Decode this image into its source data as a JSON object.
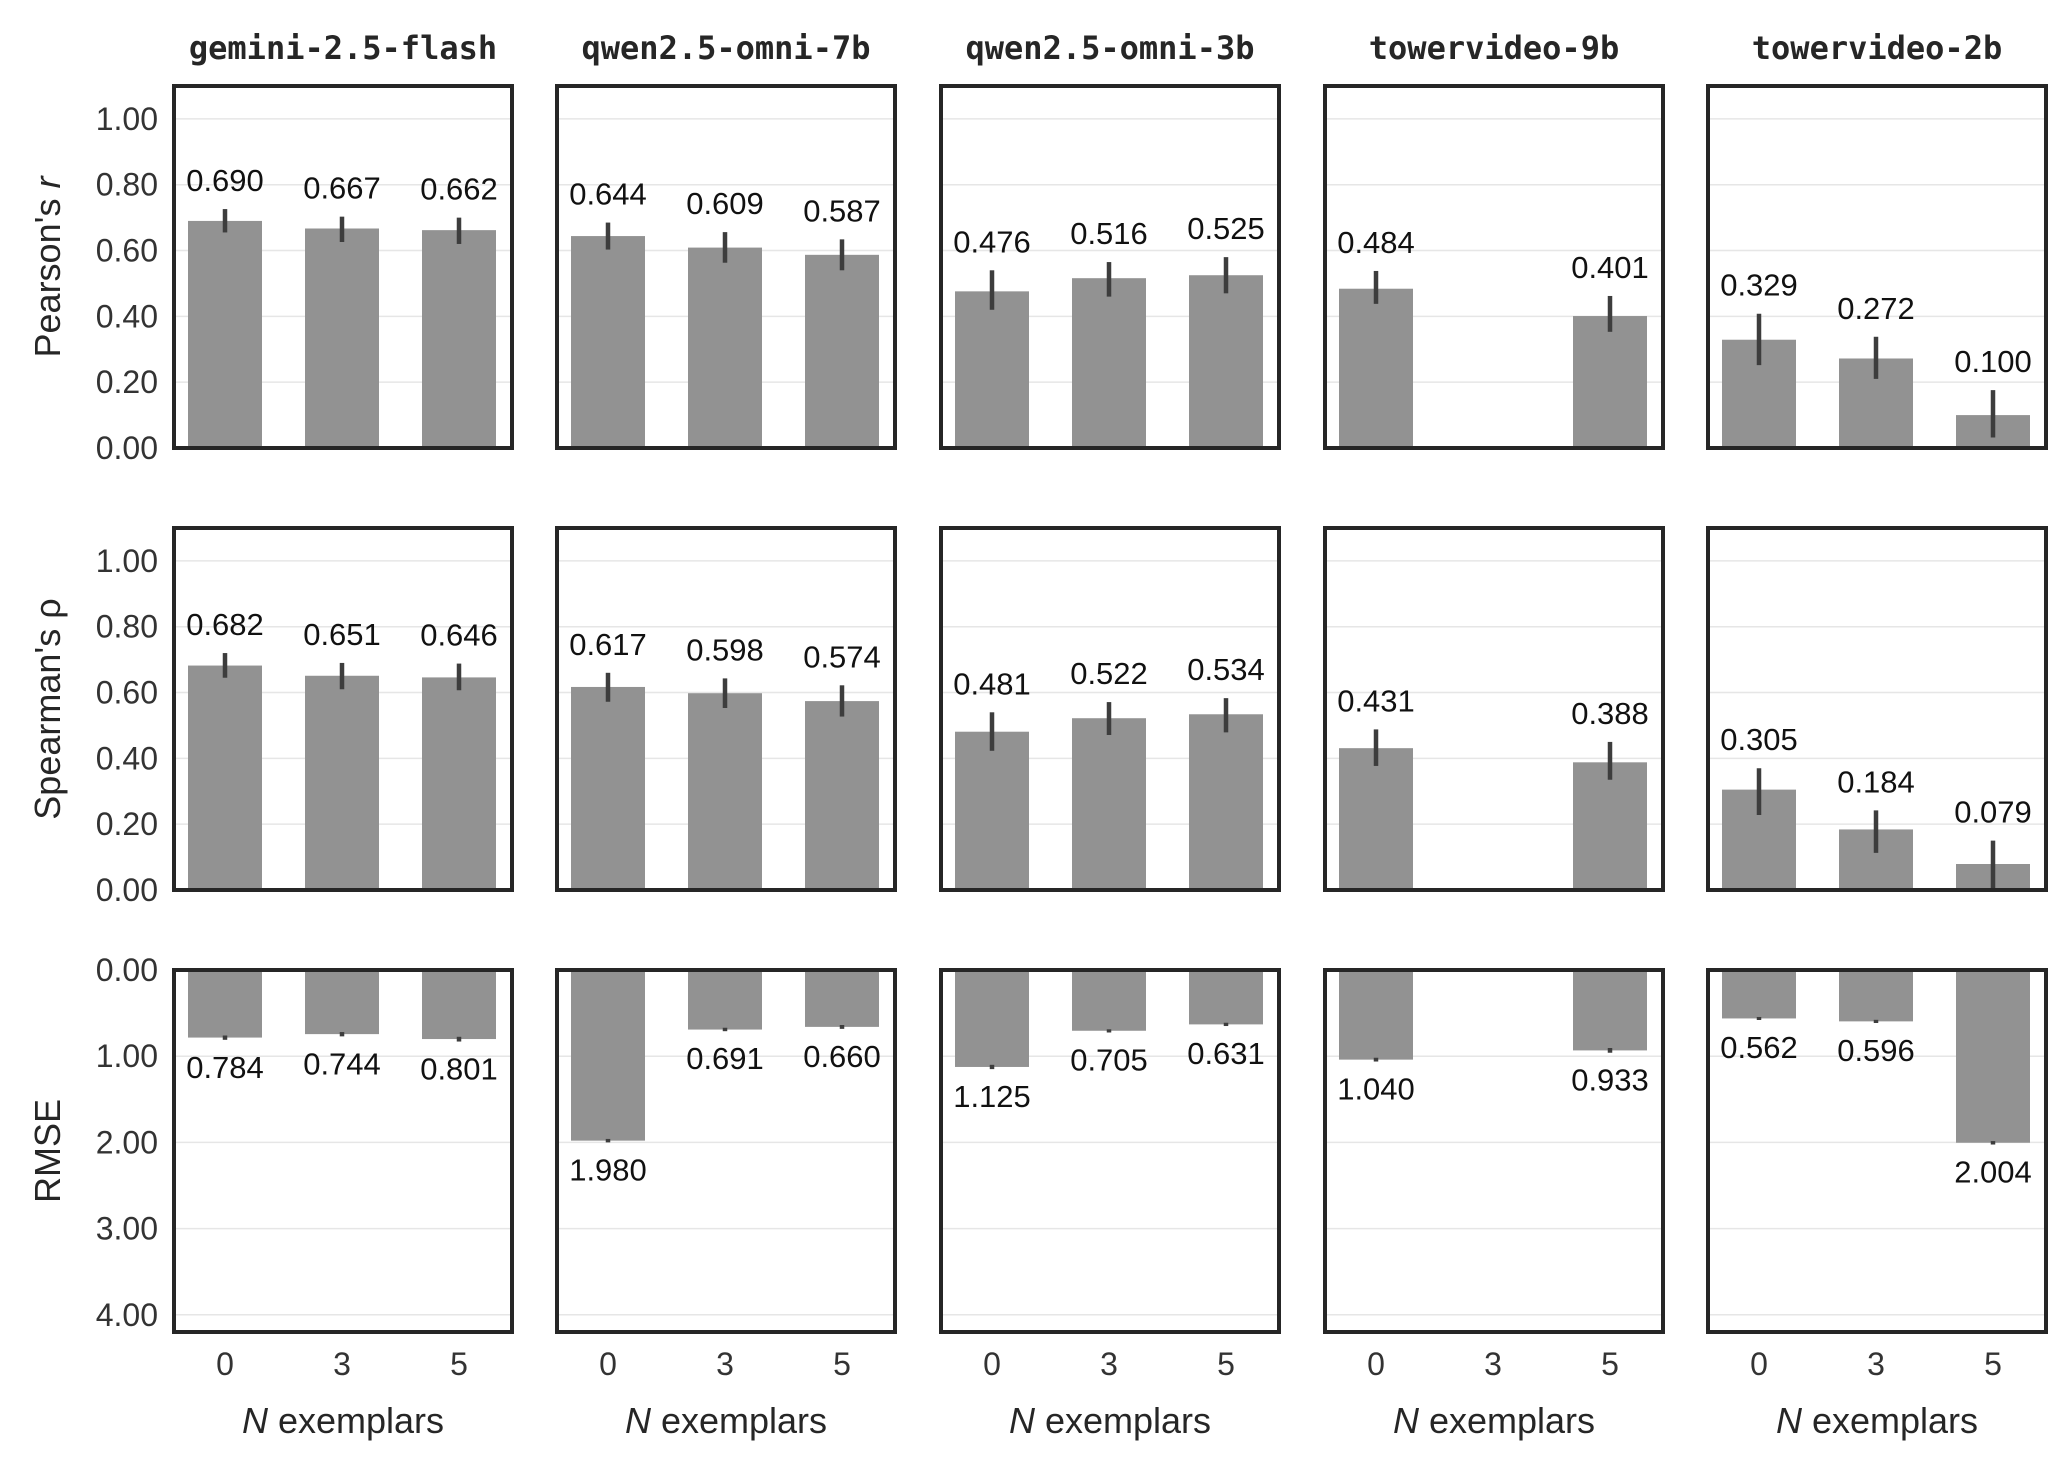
{
  "chart_data": {
    "type": "bar",
    "layout": "small-multiples grid (3 metric rows x 5 model columns)",
    "models": [
      "gemini-2.5-flash",
      "qwen2.5-omni-7b",
      "qwen2.5-omni-3b",
      "towervideo-9b",
      "towervideo-2b"
    ],
    "categories": [
      "0",
      "3",
      "5"
    ],
    "xlabel_italic": "N",
    "xlabel_rest": " exemplars",
    "bar_color": "#929292",
    "metrics": [
      {
        "key": "pearson",
        "ylabel": "Pearson's ",
        "ylabel_italic": "r",
        "ylim": [
          0,
          1.1
        ],
        "yticks": [
          0,
          0.2,
          0.4,
          0.6,
          0.8,
          1.0
        ],
        "ytick_labels": [
          "0.00",
          "0.20",
          "0.40",
          "0.60",
          "0.80",
          "1.00"
        ],
        "inverted": false,
        "series": [
          {
            "model": "gemini-2.5-flash",
            "values": [
              0.69,
              0.667,
              0.662
            ],
            "labels": [
              "0.690",
              "0.667",
              "0.662"
            ],
            "ci": [
              [
                0.655,
                0.726
              ],
              [
                0.626,
                0.703
              ],
              [
                0.62,
                0.7
              ]
            ]
          },
          {
            "model": "qwen2.5-omni-7b",
            "values": [
              0.644,
              0.609,
              0.587
            ],
            "labels": [
              "0.644",
              "0.609",
              "0.587"
            ],
            "ci": [
              [
                0.603,
                0.685
              ],
              [
                0.563,
                0.656
              ],
              [
                0.54,
                0.634
              ]
            ]
          },
          {
            "model": "qwen2.5-omni-3b",
            "values": [
              0.476,
              0.516,
              0.525
            ],
            "labels": [
              "0.476",
              "0.516",
              "0.525"
            ],
            "ci": [
              [
                0.42,
                0.54
              ],
              [
                0.46,
                0.565
              ],
              [
                0.47,
                0.58
              ]
            ]
          },
          {
            "model": "towervideo-9b",
            "values": [
              0.484,
              null,
              0.401
            ],
            "labels": [
              "0.484",
              null,
              "0.401"
            ],
            "ci": [
              [
                0.438,
                0.538
              ],
              null,
              [
                0.353,
                0.462
              ]
            ]
          },
          {
            "model": "towervideo-2b",
            "values": [
              0.329,
              0.272,
              0.1
            ],
            "labels": [
              "0.329",
              "0.272",
              "0.100"
            ],
            "ci": [
              [
                0.252,
                0.408
              ],
              [
                0.21,
                0.338
              ],
              [
                0.032,
                0.176
              ]
            ]
          }
        ]
      },
      {
        "key": "spearman",
        "ylabel": "Spearman's ρ",
        "ylabel_italic": "",
        "ylim": [
          0,
          1.1
        ],
        "yticks": [
          0,
          0.2,
          0.4,
          0.6,
          0.8,
          1.0
        ],
        "ytick_labels": [
          "0.00",
          "0.20",
          "0.40",
          "0.60",
          "0.80",
          "1.00"
        ],
        "inverted": false,
        "series": [
          {
            "model": "gemini-2.5-flash",
            "values": [
              0.682,
              0.651,
              0.646
            ],
            "labels": [
              "0.682",
              "0.651",
              "0.646"
            ],
            "ci": [
              [
                0.645,
                0.72
              ],
              [
                0.61,
                0.69
              ],
              [
                0.607,
                0.688
              ]
            ]
          },
          {
            "model": "qwen2.5-omni-7b",
            "values": [
              0.617,
              0.598,
              0.574
            ],
            "labels": [
              "0.617",
              "0.598",
              "0.574"
            ],
            "ci": [
              [
                0.572,
                0.66
              ],
              [
                0.553,
                0.643
              ],
              [
                0.527,
                0.622
              ]
            ]
          },
          {
            "model": "qwen2.5-omni-3b",
            "values": [
              0.481,
              0.522,
              0.534
            ],
            "labels": [
              "0.481",
              "0.522",
              "0.534"
            ],
            "ci": [
              [
                0.423,
                0.54
              ],
              [
                0.471,
                0.571
              ],
              [
                0.479,
                0.583
              ]
            ]
          },
          {
            "model": "towervideo-9b",
            "values": [
              0.431,
              null,
              0.388
            ],
            "labels": [
              "0.431",
              null,
              "0.388"
            ],
            "ci": [
              [
                0.377,
                0.488
              ],
              null,
              [
                0.335,
                0.45
              ]
            ]
          },
          {
            "model": "towervideo-2b",
            "values": [
              0.305,
              0.184,
              0.079
            ],
            "labels": [
              "0.305",
              "0.184",
              "0.079"
            ],
            "ci": [
              [
                0.228,
                0.37
              ],
              [
                0.113,
                0.242
              ],
              [
                0.0,
                0.15
              ]
            ]
          }
        ]
      },
      {
        "key": "rmse",
        "ylabel": "RMSE",
        "ylabel_italic": "",
        "ylim": [
          0,
          4.2
        ],
        "yticks": [
          0,
          1,
          2,
          3,
          4
        ],
        "ytick_labels": [
          "0.00",
          "1.00",
          "2.00",
          "3.00",
          "4.00"
        ],
        "inverted": true,
        "series": [
          {
            "model": "gemini-2.5-flash",
            "values": [
              0.784,
              0.744,
              0.801
            ],
            "labels": [
              "0.784",
              "0.744",
              "0.801"
            ],
            "ci": [
              [
                0.76,
                0.81
              ],
              [
                0.72,
                0.77
              ],
              [
                0.775,
                0.83
              ]
            ]
          },
          {
            "model": "qwen2.5-omni-7b",
            "values": [
              1.98,
              0.691,
              0.66
            ],
            "labels": [
              "1.980",
              "0.691",
              "0.660"
            ],
            "ci": [
              [
                1.96,
                2.0
              ],
              [
                0.67,
                0.71
              ],
              [
                0.638,
                0.683
              ]
            ]
          },
          {
            "model": "qwen2.5-omni-3b",
            "values": [
              1.125,
              0.705,
              0.631
            ],
            "labels": [
              "1.125",
              "0.705",
              "0.631"
            ],
            "ci": [
              [
                1.1,
                1.15
              ],
              [
                0.688,
                0.725
              ],
              [
                0.612,
                0.65
              ]
            ]
          },
          {
            "model": "towervideo-9b",
            "values": [
              1.04,
              null,
              0.933
            ],
            "labels": [
              "1.040",
              null,
              "0.933"
            ],
            "ci": [
              [
                1.018,
                1.062
              ],
              null,
              [
                0.905,
                0.96
              ]
            ]
          },
          {
            "model": "towervideo-2b",
            "values": [
              0.562,
              0.596,
              2.004
            ],
            "labels": [
              "0.562",
              "0.596",
              "2.004"
            ],
            "ci": [
              [
                0.545,
                0.58
              ],
              [
                0.578,
                0.615
              ],
              [
                1.985,
                2.025
              ]
            ]
          }
        ]
      }
    ]
  }
}
